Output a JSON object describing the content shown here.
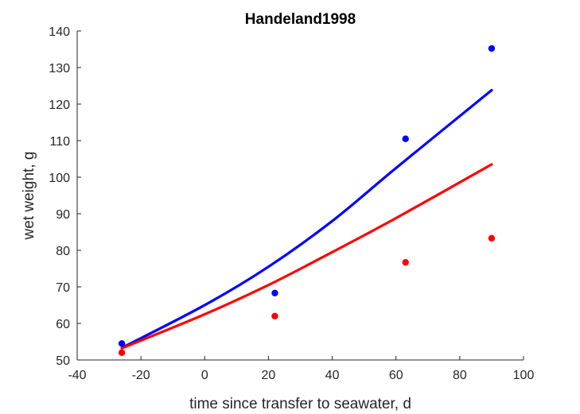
{
  "chart_data": {
    "type": "scatter",
    "title": "Handeland1998",
    "xlabel": "time since transfer to seawater, d",
    "ylabel": "wet weight, g",
    "xlim": [
      -40,
      100
    ],
    "ylim": [
      50,
      140
    ],
    "xticks": [
      -40,
      -20,
      0,
      20,
      40,
      60,
      80,
      100
    ],
    "yticks": [
      50,
      60,
      70,
      80,
      90,
      100,
      110,
      120,
      130,
      140
    ],
    "grid": false,
    "box": false,
    "series": [
      {
        "color": "#0000ff",
        "marker": "dot",
        "points": [
          {
            "x": -26,
            "y": 54.5
          },
          {
            "x": 22,
            "y": 68.3
          },
          {
            "x": 63,
            "y": 110.5
          },
          {
            "x": 90,
            "y": 135.2
          }
        ],
        "curve": [
          {
            "x": -26,
            "y": 53.3
          },
          {
            "x": 0,
            "y": 65.0
          },
          {
            "x": 20,
            "y": 75.5
          },
          {
            "x": 40,
            "y": 88.0
          },
          {
            "x": 60,
            "y": 102.5
          },
          {
            "x": 90,
            "y": 123.8
          }
        ]
      },
      {
        "color": "#ff0000",
        "marker": "dot",
        "points": [
          {
            "x": -26,
            "y": 52.0
          },
          {
            "x": 22,
            "y": 62.0
          },
          {
            "x": 63,
            "y": 76.7
          },
          {
            "x": 90,
            "y": 83.3
          }
        ],
        "curve": [
          {
            "x": -26,
            "y": 53.2
          },
          {
            "x": 0,
            "y": 62.5
          },
          {
            "x": 20,
            "y": 70.5
          },
          {
            "x": 40,
            "y": 79.5
          },
          {
            "x": 60,
            "y": 88.8
          },
          {
            "x": 90,
            "y": 103.5
          }
        ]
      }
    ]
  }
}
